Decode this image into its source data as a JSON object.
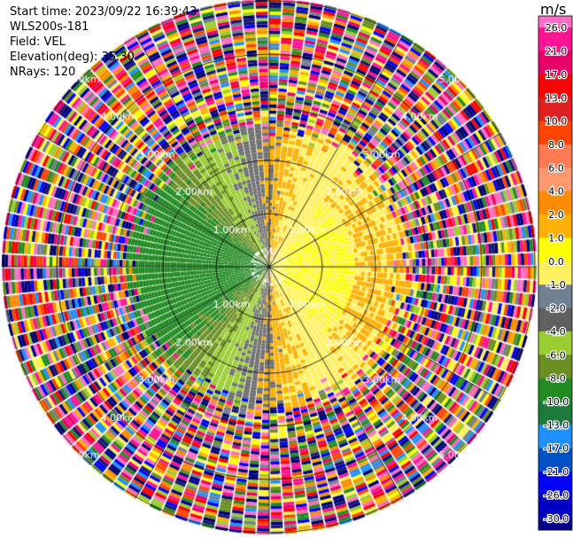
{
  "header": {
    "start_time": "Start time: 2023/09/22 16:39:43",
    "instrument": "WLS200s-181",
    "field": "Field: VEL",
    "elevation": "Elevation(deg): 35.30",
    "nrays": "NRays: 120"
  },
  "colorbar": {
    "unit": "m/s",
    "ticks": [
      "26.0",
      "21.0",
      "17.0",
      "13.0",
      "10.0",
      "8.0",
      "6.0",
      "4.0",
      "2.0",
      "1.0",
      "0.0",
      "-1.0",
      "-2.0",
      "-4.0",
      "-6.0",
      "-8.0",
      "-10.0",
      "-13.0",
      "-17.0",
      "-21.0",
      "-26.0",
      "-30.0"
    ],
    "colors": [
      "#ff6ec7",
      "#ff1493",
      "#e8006a",
      "#ff0000",
      "#e02020",
      "#ff4500",
      "#ff7a50",
      "#ff9a70",
      "#ff8c00",
      "#ffb000",
      "#ffff00",
      "#fff060",
      "#708090",
      "#606060",
      "#9acd32",
      "#6b8e23",
      "#228b22",
      "#1e7a3a",
      "#1e90ff",
      "#0050c8",
      "#0000ff",
      "#0000c0",
      "#00008b",
      "#000070",
      "#191970"
    ]
  },
  "chart_data": {
    "type": "ppi",
    "field": "VEL",
    "rays": 120,
    "range_km_max": 8.0,
    "range_rings_km": [
      1.0,
      2.0,
      3.0,
      4.0,
      5.0
    ],
    "ring_labels": [
      "1.00km",
      "2.00km",
      "3.00km",
      "4.00km",
      "5.00km"
    ],
    "color_scale_ms": [
      -30,
      26
    ],
    "pattern": "coherent velocity field within ~2.3 km (positive yellow/orange to the east, negative green to the west, gray near zero); noisy values beyond"
  }
}
